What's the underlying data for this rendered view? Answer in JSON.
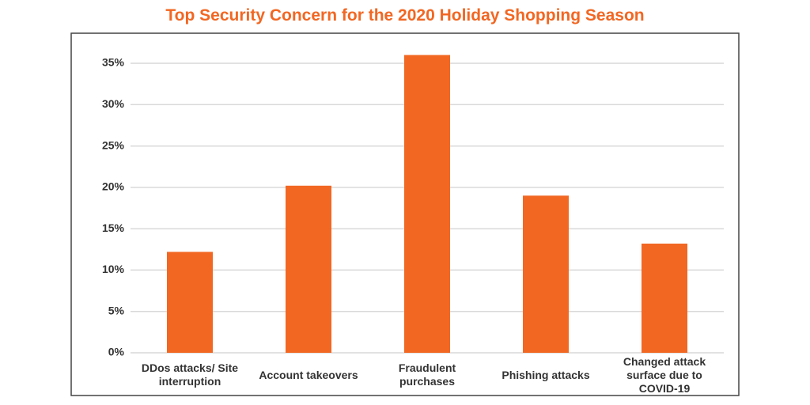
{
  "chart_data": {
    "type": "bar",
    "title": "Top Security Concern for the 2020 Holiday Shopping Season",
    "categories": [
      "DDos attacks/ Site interruption",
      "Account takeovers",
      "Fraudulent purchases",
      "Phishing attacks",
      "Changed attack surface due to COVID-19"
    ],
    "values": [
      12.2,
      20.2,
      36.0,
      19.0,
      13.2
    ],
    "color": "#f26722",
    "ylim": [
      0,
      38
    ],
    "yticks": [
      {
        "value": 0,
        "label": "0%"
      },
      {
        "value": 5,
        "label": "5%"
      },
      {
        "value": 10,
        "label": "10%"
      },
      {
        "value": 15,
        "label": "15%"
      },
      {
        "value": 20,
        "label": "20%"
      },
      {
        "value": 25,
        "label": "25%"
      },
      {
        "value": 30,
        "label": "30%"
      },
      {
        "value": 35,
        "label": "35%"
      }
    ],
    "grid": true
  }
}
